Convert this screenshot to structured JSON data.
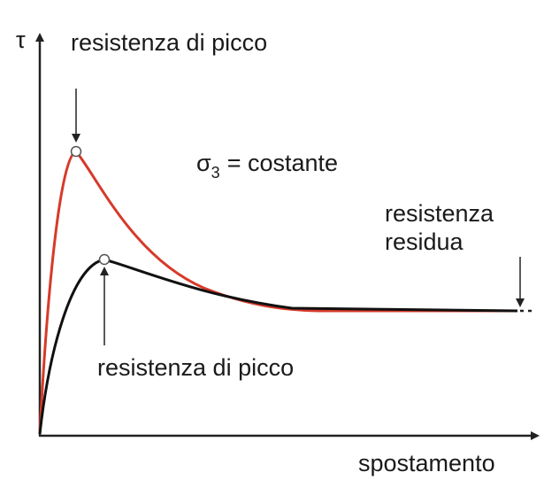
{
  "axes": {
    "y_label": "τ",
    "x_label": "spostamento"
  },
  "annotations": {
    "peak_top": "resistenza di picco",
    "condition": {
      "symbol": "σ",
      "subscript": "3",
      "text": "= costante"
    },
    "residual": [
      "resistenza",
      "residua"
    ],
    "peak_bottom": "resistenza di picco"
  }
}
